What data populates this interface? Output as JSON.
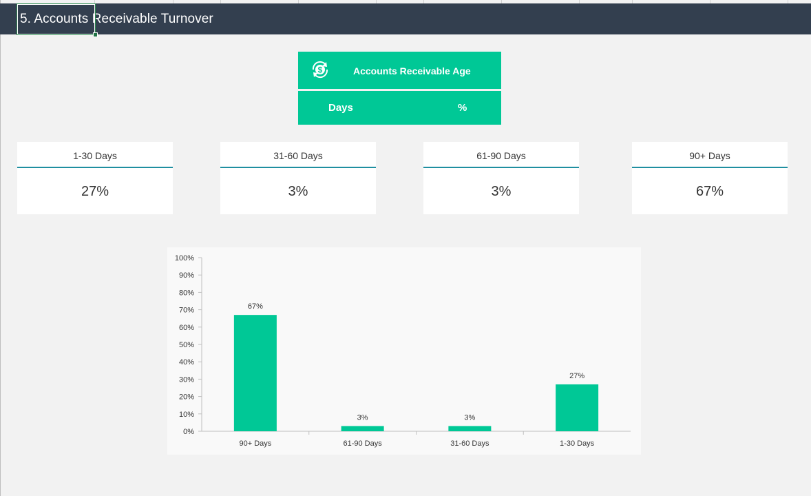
{
  "sheet": {
    "title": "5. Accounts Receivable Turnover"
  },
  "ar_panel": {
    "title": "Accounts Receivable Age",
    "icon": "dollar-cycle-icon",
    "col_days": "Days",
    "col_pct": "%"
  },
  "kpis": [
    {
      "label": "1-30 Days",
      "value": "27%"
    },
    {
      "label": "31-60 Days",
      "value": "3%"
    },
    {
      "label": "61-90 Days",
      "value": "3%"
    },
    {
      "label": "90+ Days",
      "value": "67%"
    }
  ],
  "colors": {
    "accent": "#00c896",
    "title_bar": "#333f4f",
    "kpi_rule": "#1f8fa0",
    "background": "#f2f2f2"
  },
  "chart_data": {
    "type": "bar",
    "categories": [
      "90+ Days",
      "61-90 Days",
      "31-60 Days",
      "1-30 Days"
    ],
    "values": [
      67,
      3,
      3,
      27
    ],
    "data_labels": [
      "67%",
      "3%",
      "3%",
      "27%"
    ],
    "ylim": [
      0,
      100
    ],
    "yticks": [
      "0%",
      "10%",
      "20%",
      "30%",
      "40%",
      "50%",
      "60%",
      "70%",
      "80%",
      "90%",
      "100%"
    ],
    "grid": false,
    "legend": "none",
    "bar_color": "#00c896"
  }
}
